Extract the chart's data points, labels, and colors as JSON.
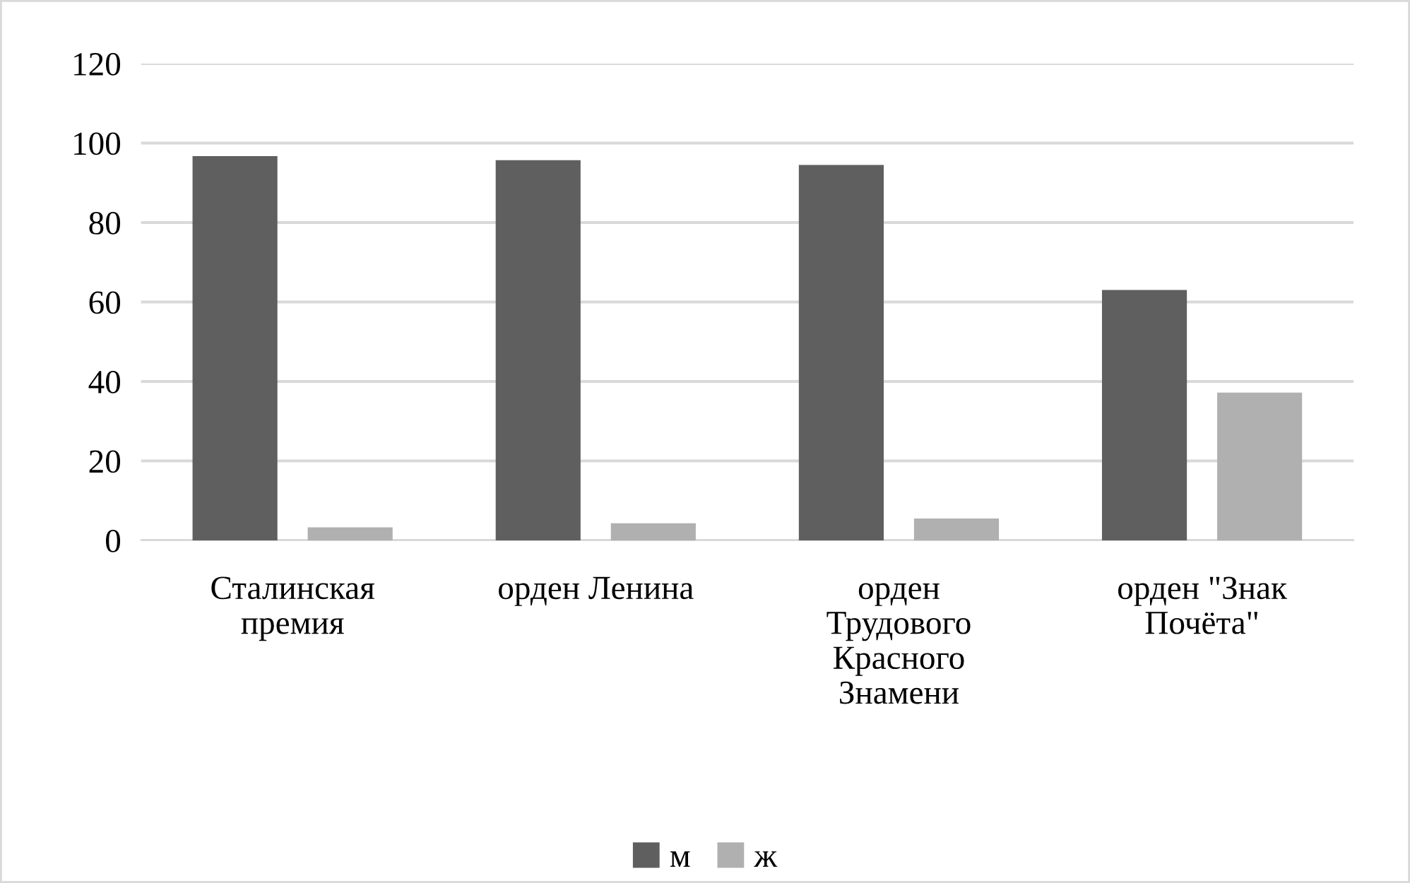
{
  "chart_data": {
    "type": "bar",
    "categories": [
      "Сталинская премия",
      "орден Ленина",
      "орден Трудового Красного Знамени",
      "орден \"Знак Почёта\""
    ],
    "series": [
      {
        "name": "м",
        "color": "#5f5f5f",
        "values": [
          96.7,
          95.7,
          94.5,
          63.0
        ]
      },
      {
        "name": "ж",
        "color": "#b0b0b0",
        "values": [
          3.3,
          4.3,
          5.5,
          37.2
        ]
      }
    ],
    "ylim": [
      0,
      120
    ],
    "yticks": [
      0,
      20,
      40,
      60,
      80,
      100,
      120
    ],
    "grid": "y",
    "legend": "bottom"
  }
}
